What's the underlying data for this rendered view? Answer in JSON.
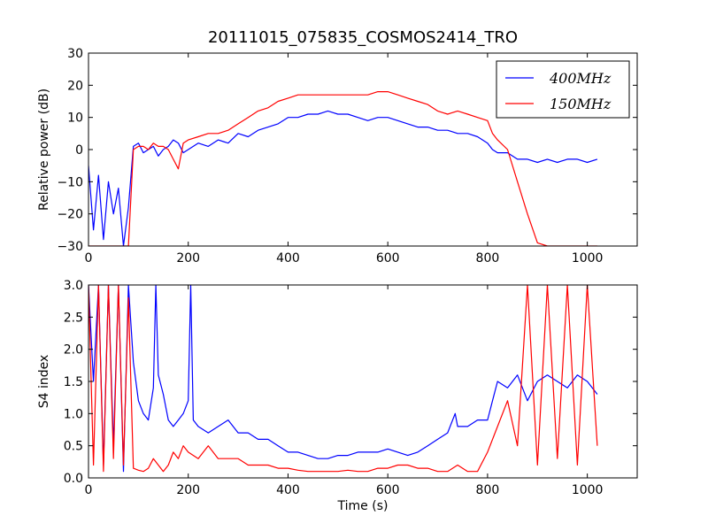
{
  "title": "20111015_075835_COSMOS2414_TRO",
  "colors": {
    "s400": "#0000ff",
    "s150": "#ff0000",
    "axes": "#000000",
    "background": "#ffffff"
  },
  "chart_data": [
    {
      "type": "line",
      "ylabel": "Relative power (dB)",
      "xlabel": "",
      "xlim": [
        0,
        1100
      ],
      "ylim": [
        -30,
        30
      ],
      "xticks": [
        0,
        200,
        400,
        600,
        800,
        1000
      ],
      "yticks": [
        -30,
        -20,
        -10,
        0,
        10,
        20,
        30
      ],
      "xtick_labels": [
        "0",
        "200",
        "400",
        "600",
        "800",
        "1000"
      ],
      "ytick_labels": [
        "−30",
        "−20",
        "−10",
        "0",
        "10",
        "20",
        "30"
      ],
      "grid": false,
      "legend_position": "top-right",
      "series": [
        {
          "name": "400MHz",
          "color": "#0000ff",
          "x": [
            0,
            10,
            20,
            30,
            40,
            50,
            60,
            70,
            80,
            90,
            100,
            110,
            120,
            130,
            140,
            150,
            160,
            170,
            180,
            190,
            200,
            220,
            240,
            260,
            280,
            300,
            320,
            340,
            360,
            380,
            400,
            420,
            440,
            460,
            480,
            500,
            520,
            540,
            560,
            580,
            600,
            620,
            640,
            660,
            680,
            700,
            720,
            740,
            760,
            780,
            800,
            810,
            820,
            840,
            860,
            880,
            900,
            920,
            940,
            960,
            980,
            1000,
            1020
          ],
          "y": [
            -5,
            -25,
            -8,
            -28,
            -10,
            -20,
            -12,
            -30,
            -18,
            1,
            2,
            -1,
            0,
            1,
            -2,
            0,
            1,
            3,
            2,
            -1,
            0,
            2,
            1,
            3,
            2,
            5,
            4,
            6,
            7,
            8,
            10,
            10,
            11,
            11,
            12,
            11,
            11,
            10,
            9,
            10,
            10,
            9,
            8,
            7,
            7,
            6,
            6,
            5,
            5,
            4,
            2,
            0,
            -1,
            -1,
            -3,
            -3,
            -4,
            -3,
            -4,
            -3,
            -3,
            -4,
            -3
          ]
        },
        {
          "name": "150MHz",
          "color": "#ff0000",
          "x": [
            0,
            10,
            20,
            30,
            40,
            50,
            60,
            70,
            80,
            90,
            100,
            110,
            120,
            130,
            140,
            150,
            160,
            170,
            180,
            190,
            200,
            220,
            240,
            260,
            280,
            300,
            320,
            340,
            360,
            380,
            400,
            420,
            440,
            460,
            480,
            500,
            520,
            540,
            560,
            580,
            600,
            620,
            640,
            660,
            680,
            700,
            720,
            740,
            760,
            780,
            800,
            810,
            820,
            840,
            860,
            880,
            900,
            920,
            940,
            960,
            980,
            1000,
            1020
          ],
          "y": [
            -30,
            -30,
            -30,
            -30,
            -30,
            -30,
            -30,
            -30,
            -30,
            0,
            1,
            1,
            0,
            2,
            1,
            1,
            0,
            -3,
            -6,
            2,
            3,
            4,
            5,
            5,
            6,
            8,
            10,
            12,
            13,
            15,
            16,
            17,
            17,
            17,
            17,
            17,
            17,
            17,
            17,
            18,
            18,
            17,
            16,
            15,
            14,
            12,
            11,
            12,
            11,
            10,
            9,
            5,
            3,
            0,
            -10,
            -20,
            -29,
            -30,
            -30,
            -30,
            -30,
            -30,
            -30
          ]
        }
      ]
    },
    {
      "type": "line",
      "ylabel": "S4 index",
      "xlabel": "Time (s)",
      "xlim": [
        0,
        1100
      ],
      "ylim": [
        0,
        3
      ],
      "xticks": [
        0,
        200,
        400,
        600,
        800,
        1000
      ],
      "yticks": [
        0,
        0.5,
        1,
        1.5,
        2,
        2.5,
        3
      ],
      "xtick_labels": [
        "0",
        "200",
        "400",
        "600",
        "800",
        "1000"
      ],
      "ytick_labels": [
        "0.0",
        "0.5",
        "1.0",
        "1.5",
        "2.0",
        "2.5",
        "3.0"
      ],
      "grid": false,
      "series": [
        {
          "color": "#0000ff",
          "x": [
            0,
            10,
            20,
            30,
            40,
            50,
            60,
            70,
            80,
            90,
            100,
            110,
            120,
            130,
            135,
            140,
            150,
            160,
            170,
            180,
            190,
            200,
            205,
            210,
            220,
            240,
            260,
            280,
            300,
            320,
            340,
            360,
            380,
            400,
            420,
            440,
            460,
            480,
            500,
            520,
            540,
            560,
            580,
            600,
            620,
            640,
            660,
            680,
            700,
            720,
            735,
            740,
            760,
            780,
            800,
            810,
            820,
            840,
            860,
            880,
            900,
            920,
            940,
            960,
            980,
            1000,
            1020
          ],
          "y": [
            3,
            1.5,
            3,
            0.2,
            3,
            0.5,
            3,
            0.1,
            3,
            1.8,
            1.2,
            1.0,
            0.9,
            1.4,
            3.0,
            1.6,
            1.3,
            0.9,
            0.8,
            0.9,
            1.0,
            1.2,
            3.0,
            0.9,
            0.8,
            0.7,
            0.8,
            0.9,
            0.7,
            0.7,
            0.6,
            0.6,
            0.5,
            0.4,
            0.4,
            0.35,
            0.3,
            0.3,
            0.35,
            0.35,
            0.4,
            0.4,
            0.4,
            0.45,
            0.4,
            0.35,
            0.4,
            0.5,
            0.6,
            0.7,
            1.0,
            0.8,
            0.8,
            0.9,
            0.9,
            1.2,
            1.5,
            1.4,
            1.6,
            1.2,
            1.5,
            1.6,
            1.5,
            1.4,
            1.6,
            1.5,
            1.3
          ]
        },
        {
          "color": "#ff0000",
          "x": [
            0,
            10,
            20,
            30,
            40,
            50,
            60,
            70,
            80,
            90,
            100,
            110,
            120,
            130,
            140,
            150,
            160,
            170,
            180,
            190,
            200,
            220,
            240,
            260,
            280,
            300,
            320,
            340,
            360,
            380,
            400,
            420,
            440,
            460,
            480,
            500,
            520,
            540,
            560,
            580,
            600,
            620,
            640,
            660,
            680,
            700,
            720,
            740,
            760,
            780,
            800,
            820,
            840,
            860,
            880,
            900,
            920,
            940,
            960,
            980,
            1000,
            1020
          ],
          "y": [
            3,
            0.2,
            3,
            0.1,
            3,
            0.3,
            3,
            0.2,
            2.8,
            0.15,
            0.12,
            0.1,
            0.15,
            0.3,
            0.2,
            0.1,
            0.2,
            0.4,
            0.3,
            0.5,
            0.4,
            0.3,
            0.5,
            0.3,
            0.3,
            0.3,
            0.2,
            0.2,
            0.2,
            0.15,
            0.15,
            0.12,
            0.1,
            0.1,
            0.1,
            0.1,
            0.12,
            0.1,
            0.1,
            0.15,
            0.15,
            0.2,
            0.2,
            0.15,
            0.15,
            0.1,
            0.1,
            0.2,
            0.1,
            0.1,
            0.4,
            0.8,
            1.2,
            0.5,
            3.0,
            0.2,
            3.0,
            0.3,
            3.0,
            0.2,
            3.0,
            0.5
          ]
        }
      ]
    }
  ]
}
